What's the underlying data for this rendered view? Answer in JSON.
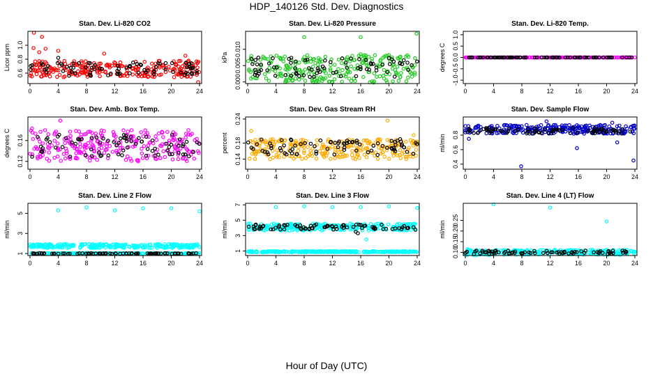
{
  "figure": {
    "title": "HDP_140126  Std. Dev. Diagnostics",
    "xlabel": "Hour of Day (UTC)"
  },
  "chart_data": [
    {
      "type": "scatter",
      "title": "Stan. Dev. Li-820 CO2",
      "ylabel": "Licor ppm",
      "xlim": [
        0,
        24
      ],
      "xticks": [
        0,
        4,
        8,
        12,
        16,
        20,
        24
      ],
      "ylim": [
        0.45,
        1.2
      ],
      "yticks": [
        0.6,
        0.8,
        1.0
      ],
      "ytick_labels": [
        "0.6",
        "0.8",
        "1.0"
      ],
      "series": [
        {
          "color": "#ff0000",
          "marker": "circle",
          "band": {
            "center": 0.66,
            "spread": 0.12
          },
          "outliers": [
            [
              0.55,
              1.18
            ],
            [
              1.7,
              1.12
            ],
            [
              0.5,
              0.96
            ],
            [
              2.2,
              0.95
            ],
            [
              4.0,
              0.92
            ],
            [
              1.3,
              0.9
            ],
            [
              23.8,
              0.47
            ],
            [
              10.5,
              0.88
            ],
            [
              22.0,
              0.85
            ]
          ]
        },
        {
          "color": "#000000",
          "marker": "circle",
          "band": {
            "center": 0.66,
            "spread": 0.1
          },
          "outliers": [
            [
              4.0,
              0.82
            ]
          ]
        }
      ]
    },
    {
      "type": "scatter",
      "title": "Stan. Dev. Li-820 Pressure",
      "ylabel": "kPa",
      "xlim": [
        0,
        24
      ],
      "xticks": [
        0,
        4,
        8,
        12,
        16,
        20,
        24
      ],
      "ylim": [
        -0.0005,
        0.0155
      ],
      "yticks": [
        0.0,
        0.005,
        0.01
      ],
      "ytick_labels": [
        "0.000",
        "0.005",
        "0.010"
      ],
      "series": [
        {
          "color": "#22cc22",
          "marker": "circle",
          "band": {
            "center": 0.004,
            "spread": 0.0042
          },
          "outliers": [
            [
              8.0,
              0.0137
            ],
            [
              16.0,
              0.0137
            ],
            [
              23.9,
              0.0148
            ],
            [
              16.0,
              0.0085
            ],
            [
              20.0,
              0.0082
            ]
          ]
        },
        {
          "color": "#000000",
          "marker": "circle",
          "band": {
            "center": 0.0045,
            "spread": 0.003
          },
          "outliers": []
        }
      ]
    },
    {
      "type": "scatter",
      "title": "Stan. Dev. Li-820 Temp.",
      "ylabel": "degrees C",
      "xlim": [
        0,
        24
      ],
      "xticks": [
        0,
        4,
        8,
        12,
        16,
        20,
        24
      ],
      "ylim": [
        -1.15,
        1.15
      ],
      "yticks": [
        -1.0,
        -0.5,
        0.0,
        0.5,
        1.0
      ],
      "ytick_labels": [
        "-1.0",
        "-0.5",
        "0.0",
        "0.5",
        "1.0"
      ],
      "series": [
        {
          "color": "#ff00ff",
          "marker": "circle",
          "band": {
            "center": 0.0,
            "spread": 0.0
          },
          "outliers": []
        },
        {
          "color": "#000000",
          "marker": "circle",
          "band": {
            "center": 0.0,
            "spread": 0.0
          },
          "outliers": []
        }
      ]
    },
    {
      "type": "scatter",
      "title": "Stan. Dev. Amb. Box Temp.",
      "ylabel": "degrees C",
      "xlim": [
        0,
        24
      ],
      "xticks": [
        0,
        4,
        8,
        12,
        16,
        20,
        24
      ],
      "ylim": [
        0.105,
        0.205
      ],
      "yticks": [
        0.12,
        0.16
      ],
      "ytick_labels": [
        "0.12",
        "0.16"
      ],
      "series": [
        {
          "color": "#ff00ff",
          "marker": "circle",
          "band": {
            "center": 0.15,
            "spread": 0.03
          },
          "outliers": [
            [
              4.3,
              0.198
            ],
            [
              0.3,
              0.183
            ]
          ]
        },
        {
          "color": "#000000",
          "marker": "circle",
          "band": {
            "center": 0.15,
            "spread": 0.022
          },
          "outliers": []
        }
      ]
    },
    {
      "type": "scatter",
      "title": "Stan. Dev. Gas Stream RH",
      "ylabel": "percent",
      "xlim": [
        0,
        24
      ],
      "xticks": [
        0,
        4,
        8,
        12,
        16,
        20,
        24
      ],
      "ylim": [
        0.115,
        0.245
      ],
      "yticks": [
        0.14,
        0.18,
        0.24
      ],
      "ytick_labels": [
        "0.14",
        "0.18",
        "0.24"
      ],
      "series": [
        {
          "color": "#ffaa00",
          "marker": "circle",
          "band": {
            "center": 0.165,
            "spread": 0.025
          },
          "outliers": [
            [
              19.8,
              0.236
            ],
            [
              0.5,
              0.21
            ],
            [
              23.5,
              0.2
            ]
          ]
        },
        {
          "color": "#000000",
          "marker": "circle",
          "band": {
            "center": 0.17,
            "spread": 0.02
          },
          "outliers": []
        }
      ]
    },
    {
      "type": "scatter",
      "title": "Stan. Dev. Sample Flow",
      "ylabel": "ml/min",
      "xlim": [
        0,
        24
      ],
      "xticks": [
        0,
        4,
        8,
        12,
        16,
        20,
        24
      ],
      "ylim": [
        0.33,
        1.05
      ],
      "yticks": [
        0.4,
        0.6,
        0.8
      ],
      "ytick_labels": [
        "0.4",
        "0.6",
        "0.8"
      ],
      "series": [
        {
          "color": "#0000cc",
          "marker": "circle",
          "band": {
            "center": 0.88,
            "spread": 0.06
          },
          "outliers": [
            [
              7.9,
              0.37
            ],
            [
              23.8,
              0.45
            ],
            [
              15.8,
              0.62
            ],
            [
              21.5,
              0.7
            ],
            [
              0.5,
              0.75
            ],
            [
              11.5,
              0.99
            ],
            [
              20.8,
              0.97
            ]
          ]
        },
        {
          "color": "#000000",
          "marker": "circle",
          "band": {
            "center": 0.86,
            "spread": 0.04
          },
          "outliers": []
        }
      ]
    },
    {
      "type": "scatter",
      "title": "Stan. Dev. Line 2 Flow",
      "ylabel": "ml/min",
      "xlim": [
        0,
        24
      ],
      "xticks": [
        0,
        4,
        8,
        12,
        16,
        20,
        24
      ],
      "ylim": [
        0.8,
        6.0
      ],
      "yticks": [
        1,
        3,
        5
      ],
      "ytick_labels": [
        "1",
        "3",
        "5"
      ],
      "series": [
        {
          "color": "#00ffff",
          "marker": "circle",
          "band": {
            "center": 1.75,
            "spread": 0.2
          },
          "outliers": [
            [
              4.0,
              5.3
            ],
            [
              8.0,
              5.6
            ],
            [
              12.0,
              5.3
            ],
            [
              16.0,
              5.5
            ],
            [
              20.0,
              5.5
            ],
            [
              24.0,
              5.2
            ]
          ]
        },
        {
          "color": "#00ffff",
          "marker": "circle",
          "band": {
            "center": 1.0,
            "spread": 0.05
          },
          "outliers": []
        },
        {
          "color": "#000000",
          "marker": "circle",
          "band": {
            "center": 1.0,
            "spread": 0.04
          },
          "outliers": []
        }
      ]
    },
    {
      "type": "scatter",
      "title": "Stan. Dev. Line 3 Flow",
      "ylabel": "ml/min",
      "xlim": [
        0,
        24
      ],
      "xticks": [
        0,
        4,
        8,
        12,
        16,
        20,
        24
      ],
      "ylim": [
        0.4,
        7.2
      ],
      "yticks": [
        1,
        3,
        5,
        7
      ],
      "ytick_labels": [
        "1",
        "3",
        "5",
        "7"
      ],
      "series": [
        {
          "color": "#00ffff",
          "marker": "circle",
          "band": {
            "center": 4.1,
            "spread": 0.45
          },
          "outliers": [
            [
              4.0,
              6.7
            ],
            [
              8.0,
              6.8
            ],
            [
              12.0,
              6.7
            ],
            [
              16.0,
              6.7
            ],
            [
              20.0,
              6.8
            ],
            [
              24.0,
              6.6
            ],
            [
              16.8,
              2.5
            ]
          ]
        },
        {
          "color": "#00ffff",
          "marker": "circle",
          "band": {
            "center": 0.9,
            "spread": 0.08
          },
          "outliers": []
        },
        {
          "color": "#000000",
          "marker": "circle",
          "band": {
            "center": 4.1,
            "spread": 0.35
          },
          "outliers": [
            [
              15.3,
              3.5
            ],
            [
              15.6,
              3.3
            ]
          ]
        }
      ]
    },
    {
      "type": "scatter",
      "title": "Stan. Dev. Line 4 (LT) Flow",
      "ylabel": "ml/min",
      "xlim": [
        0,
        24
      ],
      "xticks": [
        0,
        4,
        8,
        12,
        16,
        20,
        24
      ],
      "ylim": [
        0.085,
        0.33
      ],
      "yticks": [
        0.1,
        0.15,
        0.2,
        0.25
      ],
      "ytick_labels": [
        "0.10",
        "0.15",
        "0.20",
        "0.25"
      ],
      "series": [
        {
          "color": "#00ffff",
          "marker": "circle",
          "band": {
            "center": 0.1,
            "spread": 0.012
          },
          "outliers": [
            [
              4.0,
              0.325
            ],
            [
              12.0,
              0.31
            ],
            [
              20.0,
              0.245
            ],
            [
              0.3,
              0.115
            ]
          ]
        },
        {
          "color": "#000000",
          "marker": "circle",
          "band": {
            "center": 0.1,
            "spread": 0.008
          },
          "outliers": []
        }
      ]
    }
  ]
}
